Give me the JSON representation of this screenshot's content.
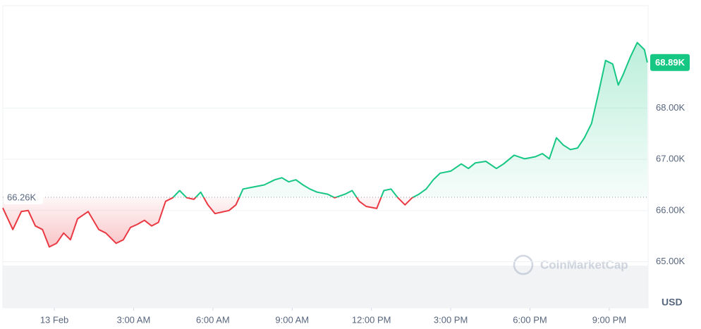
{
  "chart_data": {
    "type": "line",
    "x": [
      -1.95,
      -1.57,
      -1.25,
      -0.99,
      -0.72,
      -0.45,
      -0.19,
      0.08,
      0.35,
      0.61,
      0.88,
      1.28,
      1.68,
      1.95,
      2.34,
      2.61,
      2.88,
      3.14,
      3.41,
      3.68,
      3.94,
      4.21,
      4.48,
      4.74,
      5.01,
      5.28,
      5.54,
      5.81,
      6.08,
      6.34,
      6.61,
      6.87,
      7.14,
      7.54,
      7.94,
      8.34,
      8.61,
      8.87,
      9.14,
      9.41,
      9.67,
      9.94,
      10.34,
      10.61,
      11.0,
      11.27,
      11.54,
      11.8,
      12.2,
      12.47,
      12.74,
      13.0,
      13.27,
      13.54,
      13.8,
      14.07,
      14.34,
      14.6,
      15.0,
      15.4,
      15.67,
      15.93,
      16.33,
      16.73,
      17.0,
      17.4,
      17.8,
      18.2,
      18.47,
      18.73,
      19.0,
      19.26,
      19.53,
      19.8,
      20.06,
      20.33,
      20.6,
      20.86,
      21.13,
      21.34,
      21.53,
      21.8,
      22.06,
      22.33,
      22.44
    ],
    "values": [
      66.05,
      65.63,
      65.98,
      66.0,
      65.7,
      65.63,
      65.29,
      65.36,
      65.56,
      65.43,
      65.84,
      65.98,
      65.63,
      65.56,
      65.36,
      65.43,
      65.67,
      65.73,
      65.81,
      65.7,
      65.77,
      66.18,
      66.25,
      66.39,
      66.25,
      66.22,
      66.36,
      66.11,
      65.94,
      65.97,
      66.0,
      66.11,
      66.42,
      66.46,
      66.5,
      66.6,
      66.64,
      66.56,
      66.6,
      66.5,
      66.42,
      66.36,
      66.32,
      66.25,
      66.32,
      66.39,
      66.18,
      66.08,
      66.04,
      66.39,
      66.42,
      66.25,
      66.11,
      66.25,
      66.32,
      66.42,
      66.6,
      66.73,
      66.77,
      66.91,
      66.82,
      66.93,
      66.96,
      66.82,
      66.91,
      67.08,
      67.01,
      67.05,
      67.11,
      67.01,
      67.42,
      67.28,
      67.19,
      67.22,
      67.42,
      67.7,
      68.31,
      68.93,
      68.86,
      68.45,
      68.66,
      69.0,
      69.28,
      69.14,
      68.89
    ],
    "up_color": "#16c784",
    "down_color": "#ea3943",
    "reference": {
      "value": 66.26,
      "label": "66.26K"
    },
    "last_price": {
      "value": 68.89,
      "label": "68.89K"
    },
    "xlim": [
      -1.95,
      22.47
    ],
    "ylim": [
      64.1,
      70.0
    ],
    "xticks": [
      {
        "value": 0,
        "label": "13 Feb"
      },
      {
        "value": 3,
        "label": "3:00 AM"
      },
      {
        "value": 6,
        "label": "6:00 AM"
      },
      {
        "value": 9,
        "label": "9:00 AM"
      },
      {
        "value": 12,
        "label": "12:00 PM"
      },
      {
        "value": 15,
        "label": "3:00 PM"
      },
      {
        "value": 18,
        "label": "6:00 PM"
      },
      {
        "value": 21,
        "label": "9:00 PM"
      }
    ],
    "yticks": [
      {
        "value": 65,
        "label": "65.00K"
      },
      {
        "value": 66,
        "label": "66.00K"
      },
      {
        "value": 67,
        "label": "67.00K"
      },
      {
        "value": 68,
        "label": "68.00K"
      }
    ],
    "y_unit": "USD",
    "watermark": "CoinMarketCap",
    "grid": true
  }
}
